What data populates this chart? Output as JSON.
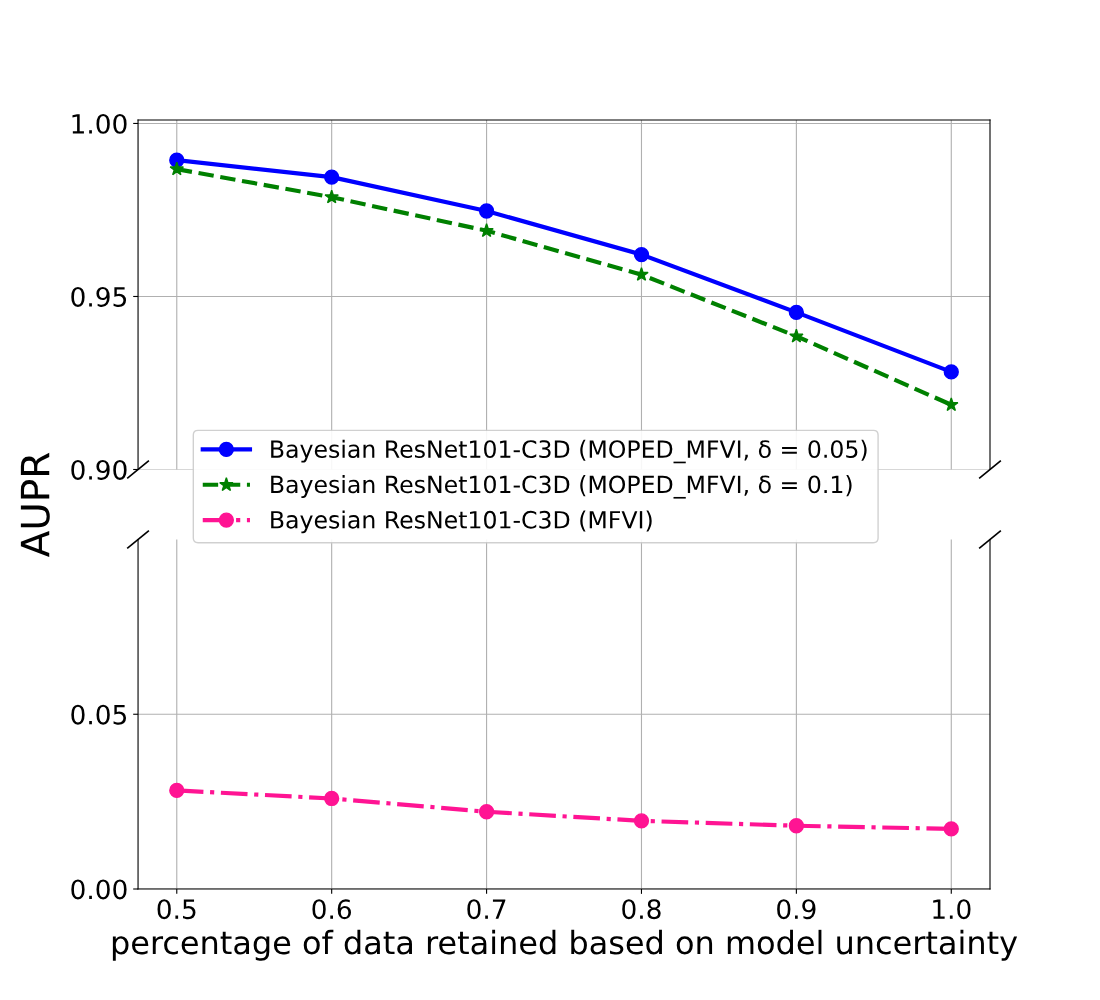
{
  "chart_data": [
    {
      "type": "line",
      "ylabel": "AUPR",
      "x": [
        0.5,
        0.6,
        0.7,
        0.8,
        0.9,
        1.0
      ],
      "xlim": [
        0.475,
        1.025
      ],
      "xticks": [
        0.5,
        0.6,
        0.7,
        0.8,
        0.9,
        1.0
      ],
      "ylim": [
        0.9,
        1.001
      ],
      "yticks": [
        {
          "value": 0.9,
          "label": "0.90"
        },
        {
          "value": 0.95,
          "label": "0.95"
        },
        {
          "value": 1.0,
          "label": "1.00"
        }
      ],
      "grid": true,
      "tick_labels": "y",
      "legend": "bottom left",
      "series": [
        {
          "name": "Bayesian ResNet101-C3D (MOPED_MFVI, δ = 0.05)",
          "color": "#0000ff",
          "marker": "circle",
          "line_style": "solid",
          "values": [
            0.9894,
            0.9845,
            0.9747,
            0.9621,
            0.9454,
            0.9282
          ]
        },
        {
          "name": "Bayesian ResNet101-C3D (MOPED_MFVI, δ = 0.1)",
          "color": "#008000",
          "marker": "star",
          "line_style": "dashed",
          "values": [
            0.9868,
            0.9787,
            0.969,
            0.9563,
            0.9385,
            0.9187
          ]
        }
      ]
    },
    {
      "type": "line",
      "xlabel": "percentage of data retained based on model uncertainty",
      "x": [
        0.5,
        0.6,
        0.7,
        0.8,
        0.9,
        1.0
      ],
      "xlim": [
        0.475,
        1.025
      ],
      "xticks": [
        0.5,
        0.6,
        0.7,
        0.8,
        0.9,
        {
          "value": 1.0,
          "label": "1.0"
        }
      ],
      "ylim": [
        0.0,
        0.1
      ],
      "yticks": [
        {
          "value": 0.0,
          "label": "0.00"
        },
        {
          "value": 0.05,
          "label": "0.05"
        }
      ],
      "grid": true,
      "series": [
        {
          "name": "Bayesian ResNet101-C3D (MFVI)",
          "color": "#ff1493",
          "marker": "circle",
          "line_style": "dashdot",
          "values": [
            0.0282,
            0.0259,
            0.0221,
            0.0195,
            0.0181,
            0.0172
          ]
        }
      ]
    }
  ]
}
